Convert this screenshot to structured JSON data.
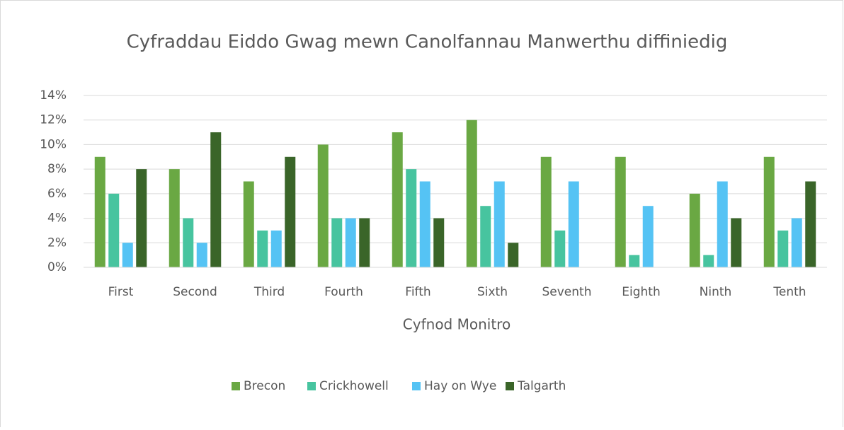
{
  "chart_data": {
    "type": "bar",
    "title": "Cyfraddau Eiddo Gwag mewn Canolfannau Manwerthu diffiniedig",
    "x_label": "Cyfnod Monitro",
    "categories": [
      "First",
      "Second",
      "Third",
      "Fourth",
      "Fifth",
      "Sixth",
      "Seventh",
      "Eighth",
      "Ninth",
      "Tenth"
    ],
    "series": [
      {
        "name": "Brecon",
        "color": "#6aa843",
        "values": [
          9,
          8,
          7,
          10,
          11,
          12,
          9,
          9,
          6,
          9
        ]
      },
      {
        "name": "Crickhowell",
        "color": "#47c49f",
        "values": [
          6,
          4,
          3,
          4,
          8,
          5,
          3,
          1,
          1,
          3
        ]
      },
      {
        "name": "Hay on Wye",
        "color": "#55c3f4",
        "values": [
          2,
          2,
          3,
          4,
          7,
          7,
          7,
          5,
          7,
          4
        ]
      },
      {
        "name": "Talgarth",
        "color": "#3a6529",
        "values": [
          8,
          11,
          9,
          4,
          4,
          2,
          0,
          0,
          4,
          7
        ]
      }
    ],
    "ylim": [
      0,
      14
    ],
    "yticks": [
      {
        "value": 0,
        "label": "0%"
      },
      {
        "value": 2,
        "label": "2%"
      },
      {
        "value": 4,
        "label": "4%"
      },
      {
        "value": 6,
        "label": "6%"
      },
      {
        "value": 8,
        "label": "8%"
      },
      {
        "value": 10,
        "label": "10%"
      },
      {
        "value": 12,
        "label": "12%"
      },
      {
        "value": 14,
        "label": "14%"
      }
    ],
    "grid": true,
    "legend_position": "bottom"
  }
}
